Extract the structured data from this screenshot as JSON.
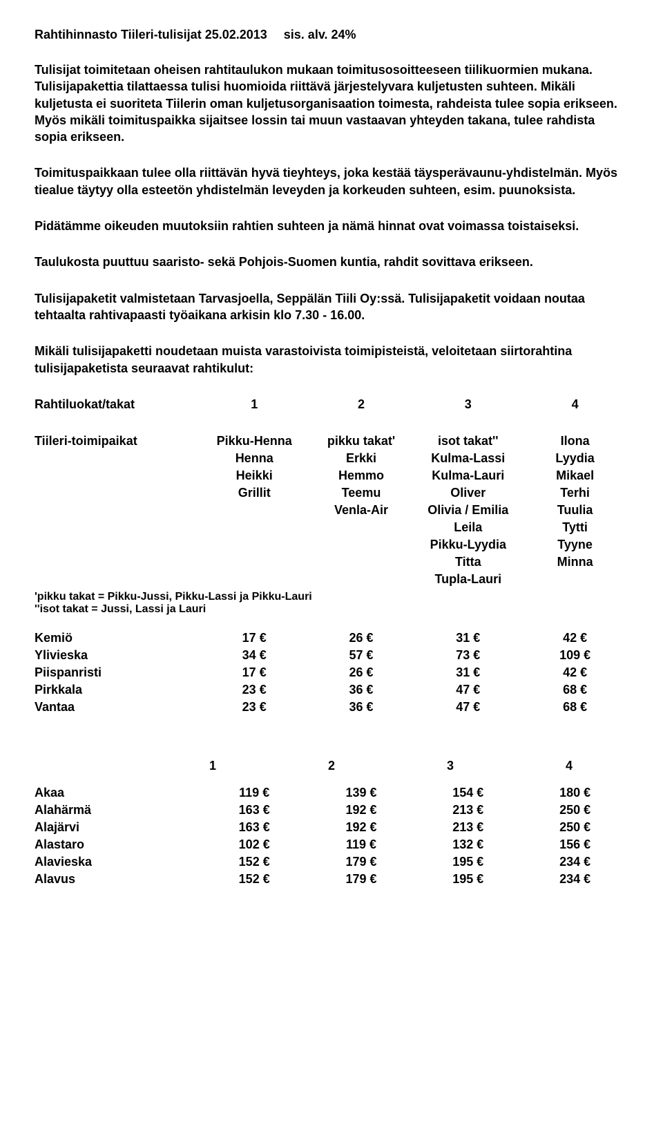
{
  "header": {
    "title": "Rahtihinnasto Tiileri-tulisijat 25.02.2013",
    "vat": "sis. alv. 24%"
  },
  "paragraphs": {
    "p1": "Tulisijat toimitetaan oheisen rahtitaulukon mukaan toimitusosoitteeseen tiilikuormien mukana. Tulisijapakettia tilattaessa tulisi huomioida riittävä järjestelyvara kuljetusten suhteen. Mikäli kuljetusta ei suoriteta Tiilerin oman kuljetusorganisaation toimesta, rahdeista tulee sopia erikseen. Myös mikäli toimituspaikka sijaitsee lossin tai muun vastaavan yhteyden takana, tulee rahdista sopia erikseen.",
    "p2": "Toimituspaikkaan tulee olla riittävän hyvä tieyhteys, joka kestää täysperävaunu-yhdistelmän. Myös tiealue täytyy olla esteetön yhdistelmän leveyden ja korkeuden suhteen, esim. puunoksista.",
    "p3": "Pidätämme oikeuden muutoksiin rahtien suhteen ja nämä hinnat ovat voimassa toistaiseksi.",
    "p4": "Taulukosta puuttuu saaristo- sekä Pohjois-Suomen kuntia, rahdit sovittava erikseen.",
    "p5": "Tulisijapaketit valmistetaan Tarvasjoella, Seppälän Tiili Oy:ssä. Tulisijapaketit voidaan noutaa tehtaalta rahtivapaasti työaikana arkisin klo 7.30 - 16.00.",
    "p6": "Mikäli tulisijapaketti noudetaan muista varastoivista toimipisteistä, veloitetaan siirtorahtina tulisijapaketista seuraavat rahtikulut:"
  },
  "classHeader": {
    "label": "Rahtiluokat/takat",
    "c1": "1",
    "c2": "2",
    "c3": "3",
    "c4": "4"
  },
  "matrix": {
    "rowLabel": "Tiileri-toimipaikat",
    "rows": [
      [
        "Pikku-Henna",
        "pikku takat'",
        "isot takat''",
        "Ilona"
      ],
      [
        "Henna",
        "Erkki",
        "Kulma-Lassi",
        "Lyydia"
      ],
      [
        "Heikki",
        "Hemmo",
        "Kulma-Lauri",
        "Mikael"
      ],
      [
        "Grillit",
        "Teemu",
        "Oliver",
        "Terhi"
      ],
      [
        "",
        "Venla-Air",
        "Olivia / Emilia",
        "Tuulia"
      ],
      [
        "",
        "",
        "Leila",
        "Tytti"
      ],
      [
        "",
        "",
        "Pikku-Lyydia",
        "Tyyne"
      ],
      [
        "",
        "",
        "Titta",
        "Minna"
      ],
      [
        "",
        "",
        "Tupla-Lauri",
        ""
      ]
    ]
  },
  "footnotes": {
    "f1": "'pikku takat = Pikku-Jussi, Pikku-Lassi ja Pikku-Lauri",
    "f2": "''isot takat = Jussi, Lassi ja Lauri"
  },
  "prices1": [
    {
      "name": "Kemiö",
      "c1": "17 €",
      "c2": "26 €",
      "c3": "31 €",
      "c4": "42 €"
    },
    {
      "name": "Ylivieska",
      "c1": "34 €",
      "c2": "57 €",
      "c3": "73 €",
      "c4": "109 €"
    },
    {
      "name": "Piispanristi",
      "c1": "17 €",
      "c2": "26 €",
      "c3": "31 €",
      "c4": "42 €"
    },
    {
      "name": "Pirkkala",
      "c1": "23 €",
      "c2": "36 €",
      "c3": "47 €",
      "c4": "68 €"
    },
    {
      "name": "Vantaa",
      "c1": "23 €",
      "c2": "36 €",
      "c3": "47 €",
      "c4": "68 €"
    }
  ],
  "header2": {
    "c1": "1",
    "c2": "2",
    "c3": "3",
    "c4": "4"
  },
  "prices2": [
    {
      "name": "Akaa",
      "c1": "119 €",
      "c2": "139 €",
      "c3": "154 €",
      "c4": "180 €"
    },
    {
      "name": "Alahärmä",
      "c1": "163 €",
      "c2": "192 €",
      "c3": "213 €",
      "c4": "250 €"
    },
    {
      "name": "Alajärvi",
      "c1": "163 €",
      "c2": "192 €",
      "c3": "213 €",
      "c4": "250 €"
    },
    {
      "name": "Alastaro",
      "c1": "102 €",
      "c2": "119 €",
      "c3": "132 €",
      "c4": "156 €"
    },
    {
      "name": "Alavieska",
      "c1": "152 €",
      "c2": "179 €",
      "c3": "195 €",
      "c4": "234 €"
    },
    {
      "name": "Alavus",
      "c1": "152 €",
      "c2": "179 €",
      "c3": "195 €",
      "c4": "234 €"
    }
  ]
}
